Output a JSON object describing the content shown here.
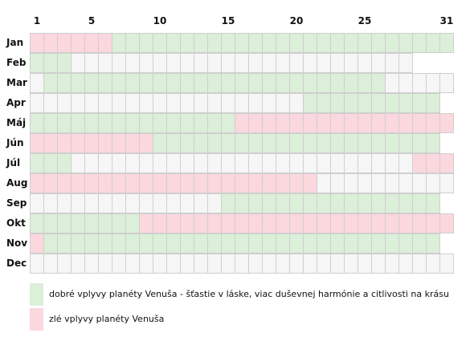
{
  "chart_data": {
    "type": "heatmap",
    "title": "",
    "x_ticks": [
      "1",
      "5",
      "10",
      "15",
      "20",
      "25",
      "31"
    ],
    "months": [
      {
        "name": "Jan",
        "days": 31,
        "segments": [
          {
            "from": 1,
            "to": 6,
            "type": "bad"
          },
          {
            "from": 7,
            "to": 31,
            "type": "good"
          }
        ]
      },
      {
        "name": "Feb",
        "days": 28,
        "segments": [
          {
            "from": 1,
            "to": 3,
            "type": "good"
          }
        ]
      },
      {
        "name": "Mar",
        "days": 31,
        "segments": [
          {
            "from": 2,
            "to": 26,
            "type": "good"
          }
        ]
      },
      {
        "name": "Apr",
        "days": 30,
        "segments": [
          {
            "from": 21,
            "to": 30,
            "type": "good"
          }
        ]
      },
      {
        "name": "Máj",
        "days": 31,
        "segments": [
          {
            "from": 1,
            "to": 15,
            "type": "good"
          },
          {
            "from": 16,
            "to": 31,
            "type": "bad"
          }
        ]
      },
      {
        "name": "Jún",
        "days": 30,
        "segments": [
          {
            "from": 1,
            "to": 9,
            "type": "bad"
          },
          {
            "from": 10,
            "to": 30,
            "type": "good"
          }
        ]
      },
      {
        "name": "Júl",
        "days": 31,
        "segments": [
          {
            "from": 1,
            "to": 3,
            "type": "good"
          },
          {
            "from": 29,
            "to": 31,
            "type": "bad"
          }
        ]
      },
      {
        "name": "Aug",
        "days": 31,
        "segments": [
          {
            "from": 1,
            "to": 21,
            "type": "bad"
          }
        ]
      },
      {
        "name": "Sep",
        "days": 30,
        "segments": [
          {
            "from": 15,
            "to": 30,
            "type": "good"
          }
        ]
      },
      {
        "name": "Okt",
        "days": 31,
        "segments": [
          {
            "from": 1,
            "to": 8,
            "type": "good"
          },
          {
            "from": 9,
            "to": 31,
            "type": "bad"
          }
        ]
      },
      {
        "name": "Nov",
        "days": 30,
        "segments": [
          {
            "from": 1,
            "to": 1,
            "type": "bad"
          },
          {
            "from": 2,
            "to": 30,
            "type": "good"
          }
        ]
      },
      {
        "name": "Dec",
        "days": 31,
        "segments": []
      }
    ],
    "legend": [
      {
        "type": "good",
        "label": "dobré vplyvy planéty Venuša - šťastie v láske, viac duševnej harmónie a citlivosti na krásu"
      },
      {
        "type": "bad",
        "label": "zlé vplyvy planéty Venuša"
      }
    ],
    "colors": {
      "good": "#dcefd9",
      "bad": "#fbd7de",
      "neutral": "#f6f6f6",
      "gridline": "#cfcfcf"
    }
  }
}
